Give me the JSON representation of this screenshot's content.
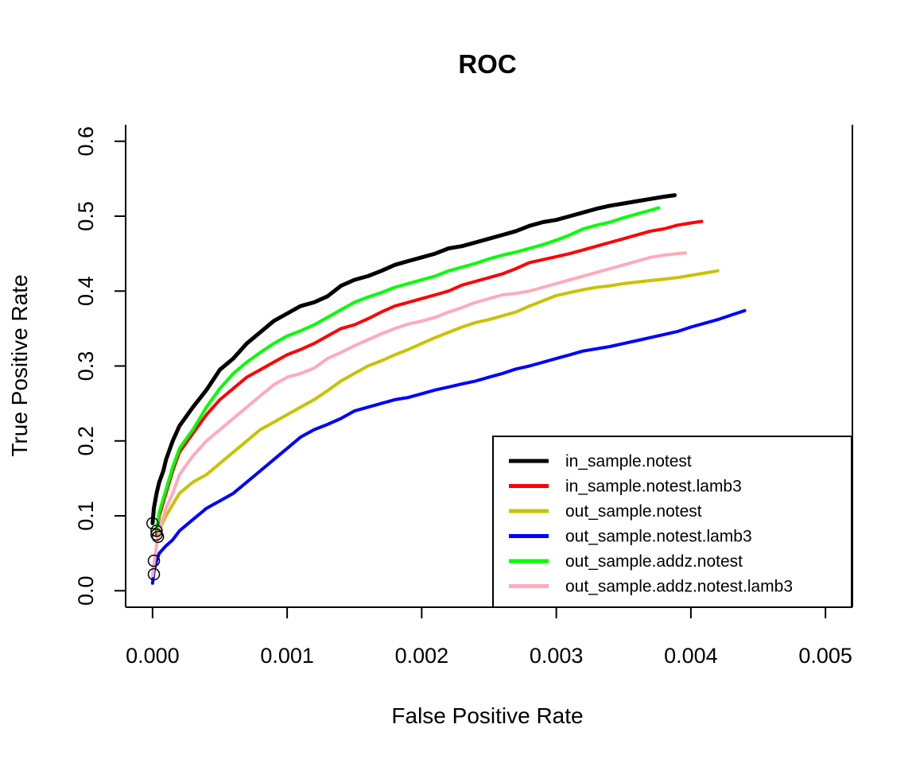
{
  "chart_data": {
    "type": "line",
    "title": "ROC",
    "xlabel": "False Positive Rate",
    "ylabel": "True Positive Rate",
    "xlim": [
      -0.0002,
      0.0052
    ],
    "ylim": [
      -0.022,
      0.622
    ],
    "x_ticks": [
      0.0,
      0.001,
      0.002,
      0.003,
      0.004,
      0.005
    ],
    "x_tick_labels": [
      "0.000",
      "0.001",
      "0.002",
      "0.003",
      "0.004",
      "0.005"
    ],
    "y_ticks": [
      0.0,
      0.1,
      0.2,
      0.3,
      0.4,
      0.5,
      0.6
    ],
    "y_tick_labels": [
      "0.0",
      "0.1",
      "0.2",
      "0.3",
      "0.4",
      "0.5",
      "0.6"
    ],
    "grid": false,
    "legend_position": "bottom-right",
    "series": [
      {
        "name": "in_sample.notest",
        "color": "#000000",
        "width": 5,
        "marker_start": [
          0.0,
          0.09
        ],
        "x": [
          0.0,
          1e-05,
          3e-05,
          5e-05,
          8e-05,
          0.0001,
          0.00015,
          0.0002,
          0.0003,
          0.0004,
          0.0005,
          0.0006,
          0.0007,
          0.0008,
          0.0009,
          0.001,
          0.0011,
          0.0012,
          0.0013,
          0.0014,
          0.0015,
          0.0016,
          0.0017,
          0.0018,
          0.0019,
          0.002,
          0.0021,
          0.0022,
          0.0023,
          0.0024,
          0.0025,
          0.0026,
          0.0027,
          0.0028,
          0.0029,
          0.003,
          0.0031,
          0.0032,
          0.0033,
          0.0034,
          0.0035,
          0.0036,
          0.0037,
          0.0038,
          0.00388
        ],
        "y": [
          0.09,
          0.11,
          0.13,
          0.145,
          0.16,
          0.175,
          0.2,
          0.22,
          0.245,
          0.268,
          0.295,
          0.31,
          0.33,
          0.345,
          0.36,
          0.37,
          0.38,
          0.385,
          0.393,
          0.407,
          0.415,
          0.42,
          0.427,
          0.435,
          0.44,
          0.445,
          0.45,
          0.457,
          0.46,
          0.465,
          0.47,
          0.475,
          0.48,
          0.487,
          0.492,
          0.495,
          0.5,
          0.505,
          0.51,
          0.514,
          0.517,
          0.52,
          0.523,
          0.526,
          0.528
        ]
      },
      {
        "name": "in_sample.notest.lamb3",
        "color": "#ff0000",
        "width": 4,
        "marker_start": [
          3e-05,
          0.075
        ],
        "x": [
          3e-05,
          5e-05,
          0.0001,
          0.00015,
          0.0002,
          0.0003,
          0.0004,
          0.0005,
          0.0006,
          0.0007,
          0.0008,
          0.0009,
          0.001,
          0.0011,
          0.0012,
          0.0013,
          0.0014,
          0.0015,
          0.0016,
          0.0017,
          0.0018,
          0.0019,
          0.002,
          0.0021,
          0.0022,
          0.0023,
          0.0024,
          0.0025,
          0.0026,
          0.0027,
          0.0028,
          0.0029,
          0.003,
          0.0031,
          0.0032,
          0.0033,
          0.0034,
          0.0035,
          0.0036,
          0.0037,
          0.0038,
          0.0039,
          0.004,
          0.00408
        ],
        "y": [
          0.075,
          0.1,
          0.13,
          0.16,
          0.185,
          0.21,
          0.235,
          0.255,
          0.27,
          0.285,
          0.295,
          0.305,
          0.315,
          0.322,
          0.33,
          0.34,
          0.35,
          0.355,
          0.363,
          0.372,
          0.38,
          0.385,
          0.39,
          0.395,
          0.4,
          0.408,
          0.413,
          0.418,
          0.423,
          0.43,
          0.438,
          0.442,
          0.446,
          0.45,
          0.455,
          0.46,
          0.465,
          0.47,
          0.475,
          0.48,
          0.483,
          0.488,
          0.491,
          0.493
        ]
      },
      {
        "name": "out_sample.notest",
        "color": "#c8c300",
        "width": 4,
        "marker_start": [
          4e-05,
          0.072
        ],
        "x": [
          4e-05,
          6e-05,
          0.0001,
          0.00015,
          0.0002,
          0.0003,
          0.0004,
          0.0005,
          0.0006,
          0.0007,
          0.0008,
          0.0009,
          0.001,
          0.0011,
          0.0012,
          0.0013,
          0.0014,
          0.0015,
          0.0016,
          0.0017,
          0.0018,
          0.0019,
          0.002,
          0.0021,
          0.0022,
          0.0023,
          0.0024,
          0.0025,
          0.0026,
          0.0027,
          0.0028,
          0.0029,
          0.003,
          0.0031,
          0.0032,
          0.0033,
          0.0034,
          0.0035,
          0.0036,
          0.0037,
          0.0038,
          0.0039,
          0.004,
          0.0041,
          0.0042
        ],
        "y": [
          0.072,
          0.085,
          0.1,
          0.115,
          0.13,
          0.145,
          0.155,
          0.17,
          0.185,
          0.2,
          0.215,
          0.225,
          0.235,
          0.245,
          0.255,
          0.267,
          0.28,
          0.29,
          0.3,
          0.307,
          0.315,
          0.322,
          0.33,
          0.338,
          0.345,
          0.352,
          0.358,
          0.362,
          0.367,
          0.372,
          0.38,
          0.387,
          0.394,
          0.398,
          0.402,
          0.405,
          0.407,
          0.41,
          0.412,
          0.414,
          0.416,
          0.418,
          0.421,
          0.424,
          0.427
        ]
      },
      {
        "name": "out_sample.notest.lamb3",
        "color": "#0000ff",
        "width": 4,
        "marker_start": [
          1e-05,
          0.04
        ],
        "x": [
          0.0,
          1e-05,
          3e-05,
          5e-05,
          0.0001,
          0.00015,
          0.0002,
          0.0003,
          0.0004,
          0.0005,
          0.0006,
          0.0007,
          0.0008,
          0.0009,
          0.001,
          0.0011,
          0.0012,
          0.0013,
          0.0014,
          0.0015,
          0.0016,
          0.0017,
          0.0018,
          0.0019,
          0.002,
          0.0021,
          0.0022,
          0.0023,
          0.0024,
          0.0025,
          0.0026,
          0.0027,
          0.0028,
          0.0029,
          0.003,
          0.0031,
          0.0032,
          0.0033,
          0.0034,
          0.0035,
          0.0036,
          0.0037,
          0.0038,
          0.0039,
          0.004,
          0.0041,
          0.0042,
          0.0043,
          0.0044
        ],
        "y": [
          0.01,
          0.025,
          0.04,
          0.05,
          0.06,
          0.068,
          0.08,
          0.095,
          0.11,
          0.12,
          0.13,
          0.145,
          0.16,
          0.175,
          0.19,
          0.205,
          0.215,
          0.222,
          0.23,
          0.24,
          0.245,
          0.25,
          0.255,
          0.258,
          0.263,
          0.268,
          0.272,
          0.276,
          0.28,
          0.285,
          0.29,
          0.296,
          0.3,
          0.305,
          0.31,
          0.315,
          0.32,
          0.323,
          0.326,
          0.33,
          0.334,
          0.338,
          0.342,
          0.346,
          0.352,
          0.357,
          0.362,
          0.368,
          0.374
        ]
      },
      {
        "name": "out_sample.addz.notest",
        "color": "#00ff00",
        "width": 4,
        "marker_start": [
          3e-05,
          0.08
        ],
        "x": [
          3e-05,
          5e-05,
          0.0001,
          0.00015,
          0.0002,
          0.0003,
          0.0004,
          0.0005,
          0.0006,
          0.0007,
          0.0008,
          0.0009,
          0.001,
          0.0011,
          0.0012,
          0.0013,
          0.0014,
          0.0015,
          0.0016,
          0.0017,
          0.0018,
          0.0019,
          0.002,
          0.0021,
          0.0022,
          0.0023,
          0.0024,
          0.0025,
          0.0026,
          0.0027,
          0.0028,
          0.0029,
          0.003,
          0.0031,
          0.0032,
          0.0033,
          0.0034,
          0.0035,
          0.0036,
          0.0037,
          0.00376
        ],
        "y": [
          0.08,
          0.105,
          0.135,
          0.165,
          0.19,
          0.215,
          0.245,
          0.27,
          0.29,
          0.305,
          0.318,
          0.33,
          0.34,
          0.347,
          0.355,
          0.365,
          0.375,
          0.385,
          0.392,
          0.398,
          0.405,
          0.41,
          0.415,
          0.42,
          0.427,
          0.432,
          0.437,
          0.443,
          0.448,
          0.452,
          0.457,
          0.462,
          0.468,
          0.475,
          0.483,
          0.488,
          0.492,
          0.498,
          0.503,
          0.508,
          0.511
        ]
      },
      {
        "name": "out_sample.addz.notest.lamb3",
        "color": "#ffaabb",
        "width": 4,
        "marker_start": [
          1e-05,
          0.022
        ],
        "x": [
          0.0,
          1e-05,
          3e-05,
          5e-05,
          0.0001,
          0.00015,
          0.0002,
          0.0003,
          0.0004,
          0.0005,
          0.0006,
          0.0007,
          0.0008,
          0.0009,
          0.001,
          0.0011,
          0.0012,
          0.0013,
          0.0014,
          0.0015,
          0.0016,
          0.0017,
          0.0018,
          0.0019,
          0.002,
          0.0021,
          0.0022,
          0.0023,
          0.0024,
          0.0025,
          0.0026,
          0.0027,
          0.0028,
          0.0029,
          0.003,
          0.0031,
          0.0032,
          0.0033,
          0.0034,
          0.0035,
          0.0036,
          0.0037,
          0.0038,
          0.0039,
          0.00396
        ],
        "y": [
          0.02,
          0.035,
          0.06,
          0.08,
          0.11,
          0.13,
          0.155,
          0.18,
          0.2,
          0.215,
          0.23,
          0.245,
          0.26,
          0.275,
          0.285,
          0.29,
          0.297,
          0.31,
          0.318,
          0.327,
          0.335,
          0.343,
          0.35,
          0.356,
          0.36,
          0.365,
          0.372,
          0.378,
          0.385,
          0.39,
          0.395,
          0.397,
          0.4,
          0.405,
          0.41,
          0.415,
          0.42,
          0.425,
          0.43,
          0.435,
          0.44,
          0.445,
          0.448,
          0.45,
          0.451
        ]
      }
    ]
  }
}
